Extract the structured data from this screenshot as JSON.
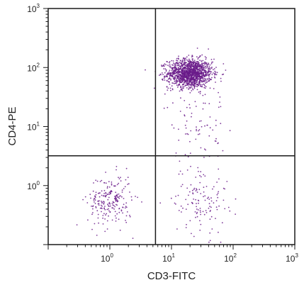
{
  "chart_data": {
    "type": "scatter",
    "title": "",
    "xlabel": "CD3-FITC",
    "ylabel": "CD4-PE",
    "xscale": "log",
    "yscale": "log",
    "xlim": [
      0.1,
      1000
    ],
    "ylim": [
      0.1,
      1000
    ],
    "x_ticks": [
      {
        "base": "10",
        "exp": "0",
        "value": 1
      },
      {
        "base": "10",
        "exp": "1",
        "value": 10
      },
      {
        "base": "10",
        "exp": "2",
        "value": 100
      },
      {
        "base": "10",
        "exp": "3",
        "value": 1000
      }
    ],
    "y_ticks": [
      {
        "base": "10",
        "exp": "0",
        "value": 1
      },
      {
        "base": "10",
        "exp": "1",
        "value": 10
      },
      {
        "base": "10",
        "exp": "2",
        "value": 100
      },
      {
        "base": "10",
        "exp": "3",
        "value": 1000
      }
    ],
    "quadrant_gates": {
      "x": 5.5,
      "y": 3.2
    },
    "point_color": "#6a1b8a",
    "populations": [
      {
        "x_center": 20,
        "y_center": 80,
        "x_spread_decades": 0.18,
        "y_spread_decades": 0.12,
        "approx_count": 1400
      },
      {
        "x_center": 1.0,
        "y_center": 0.55,
        "x_spread_decades": 0.18,
        "y_spread_decades": 0.22,
        "approx_count": 220
      },
      {
        "x_center": 30,
        "y_center": 0.6,
        "x_spread_decades": 0.22,
        "y_spread_decades": 0.3,
        "approx_count": 130
      },
      {
        "x_center": 25,
        "y_center": 15,
        "x_spread_decades": 0.25,
        "y_spread_decades": 0.4,
        "approx_count": 90
      }
    ],
    "grid": false
  }
}
